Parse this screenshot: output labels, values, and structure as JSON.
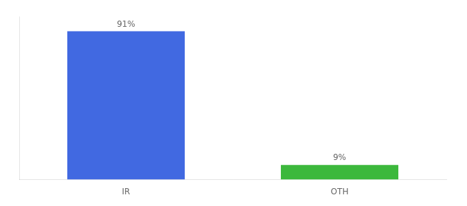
{
  "chart_data": {
    "type": "bar",
    "categories": [
      "IR",
      "OTH"
    ],
    "values": [
      91,
      9
    ],
    "value_labels": [
      "91%",
      "9%"
    ],
    "colors": [
      "#4169e1",
      "#3cb83c"
    ],
    "ylim": [
      0,
      100
    ],
    "grid": false,
    "data_labels": true,
    "tick_labels": "x"
  }
}
